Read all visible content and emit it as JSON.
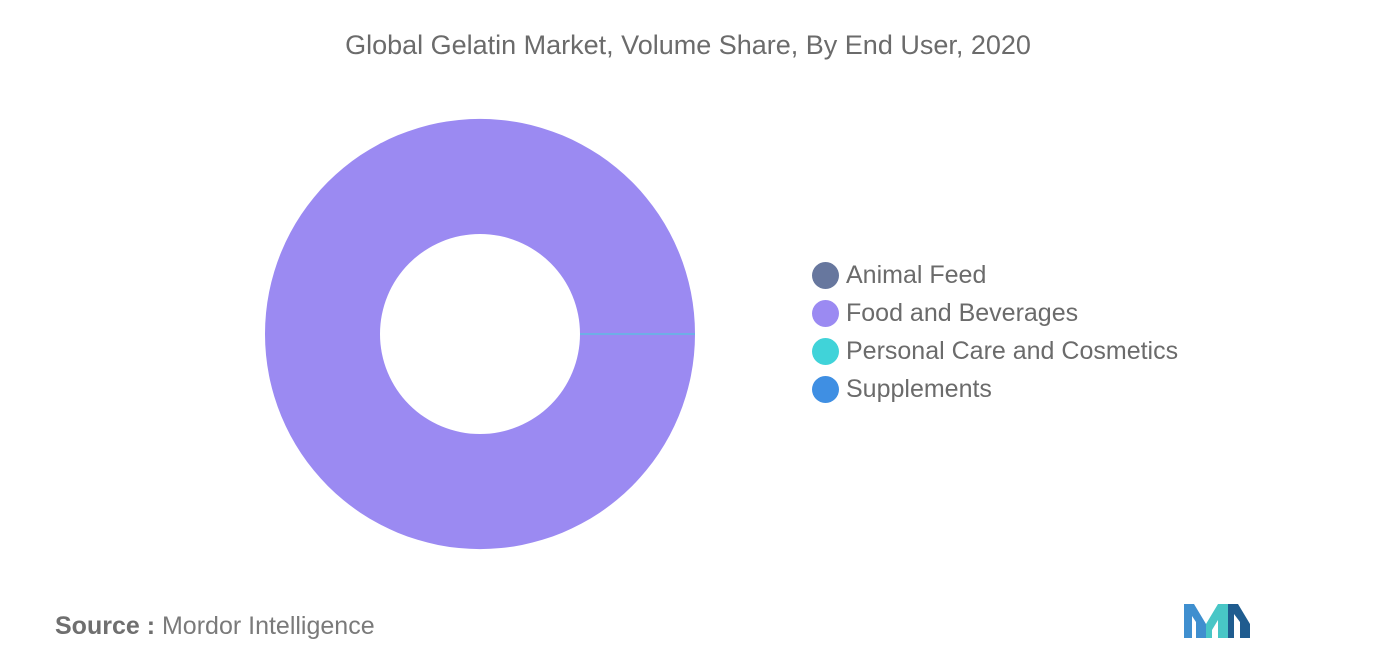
{
  "chart_data": {
    "type": "pie",
    "title": "Global Gelatin Market, Volume Share, By End User, 2020",
    "donut": true,
    "categories": [
      "Animal Feed",
      "Food and Beverages",
      "Personal Care and Cosmetics",
      "Supplements"
    ],
    "values": [
      0,
      100,
      0,
      0
    ],
    "colors": [
      "#67779e",
      "#9b8af2",
      "#40d3d9",
      "#3f8fe3"
    ],
    "legend_position": "right"
  },
  "source": {
    "label": "Source :",
    "value": "Mordor Intelligence"
  },
  "logo": {
    "icon": "mordor-intelligence-logo-icon",
    "colors": [
      "#3f8fcf",
      "#48c6c6",
      "#1f5c8f"
    ]
  }
}
